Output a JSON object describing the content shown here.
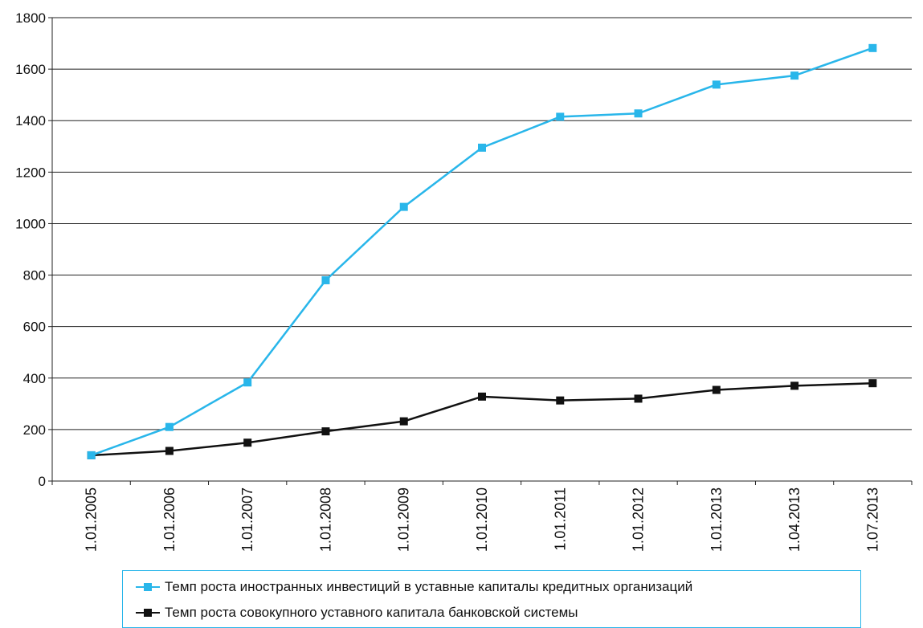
{
  "chart_data": {
    "type": "line",
    "title": "",
    "categories": [
      "1.01.2005",
      "1.01.2006",
      "1.01.2007",
      "1.01.2008",
      "1.01.2009",
      "1.01.2010",
      "1.01.2011",
      "1.01.2012",
      "1.01.2013",
      "1.04.2013",
      "1.07.2013"
    ],
    "ylim": [
      0,
      1800
    ],
    "yticks": [
      0,
      200,
      400,
      600,
      800,
      1000,
      1200,
      1400,
      1600,
      1800
    ],
    "grid": true,
    "legend_position": "bottom",
    "series": [
      {
        "name": "Темп роста иностранных инвестиций в уставные капиталы кредитных организаций",
        "color": "#29b6ea",
        "marker": "square",
        "values": [
          100,
          210,
          383,
          780,
          1065,
          1295,
          1415,
          1428,
          1540,
          1575,
          1682
        ]
      },
      {
        "name": "Темп роста совокупного уставного капитала банковской системы",
        "color": "#111111",
        "marker": "square",
        "values": [
          100,
          117,
          149,
          193,
          232,
          328,
          313,
          320,
          354,
          370,
          380
        ]
      }
    ]
  }
}
